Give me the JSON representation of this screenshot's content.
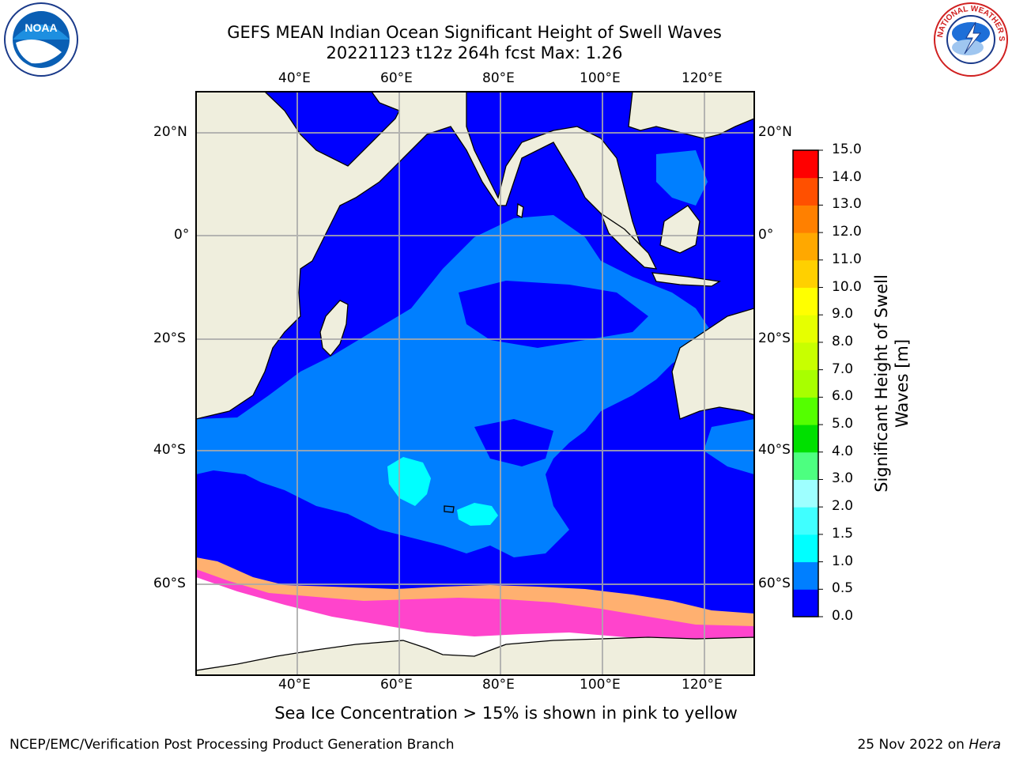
{
  "title": {
    "line1": "GEFS MEAN Indian Ocean Significant Height of Swell Waves",
    "line2": "20221123 t12z 264h fcst   Max: 1.26"
  },
  "axes": {
    "lon_ticks": [
      "40°E",
      "60°E",
      "80°E",
      "100°E",
      "120°E"
    ],
    "lat_ticks": [
      "20°N",
      "0°",
      "20°S",
      "40°S",
      "60°S"
    ]
  },
  "colorbar": {
    "title_line1": "Significant Height of Swell",
    "title_line2": "Waves [m]",
    "levels": [
      "0.0",
      "0.5",
      "1.0",
      "1.5",
      "2.0",
      "3.0",
      "4.0",
      "5.0",
      "6.0",
      "7.0",
      "8.0",
      "9.0",
      "10.0",
      "11.0",
      "12.0",
      "13.0",
      "14.0",
      "15.0"
    ],
    "colors": [
      "#0000ff",
      "#007fff",
      "#00ffff",
      "#40ffff",
      "#9effff",
      "#4dff80",
      "#00e000",
      "#54ff00",
      "#a8ff00",
      "#c8ff00",
      "#e6ff00",
      "#ffff00",
      "#ffd000",
      "#ffa800",
      "#ff8000",
      "#ff5000",
      "#ff0000"
    ]
  },
  "colors": {
    "ocean_low": "#0000ff",
    "ocean_mid": "#007fff",
    "ocean_high": "#00ffff",
    "land": "#f0f0e0",
    "ice_pink": "#ff44cc",
    "ice_orange": "#ffa060"
  },
  "footer": {
    "note": "Sea Ice Concentration > 15% is shown in pink to yellow",
    "left": "NCEP/EMC/Verification Post Processing Product Generation Branch",
    "right_prefix": "25 Nov 2022 on ",
    "right_machine": "Hera"
  },
  "logos": {
    "noaa": "NOAA",
    "nws_ring": "NATIONAL WEATHER SERVICE"
  }
}
